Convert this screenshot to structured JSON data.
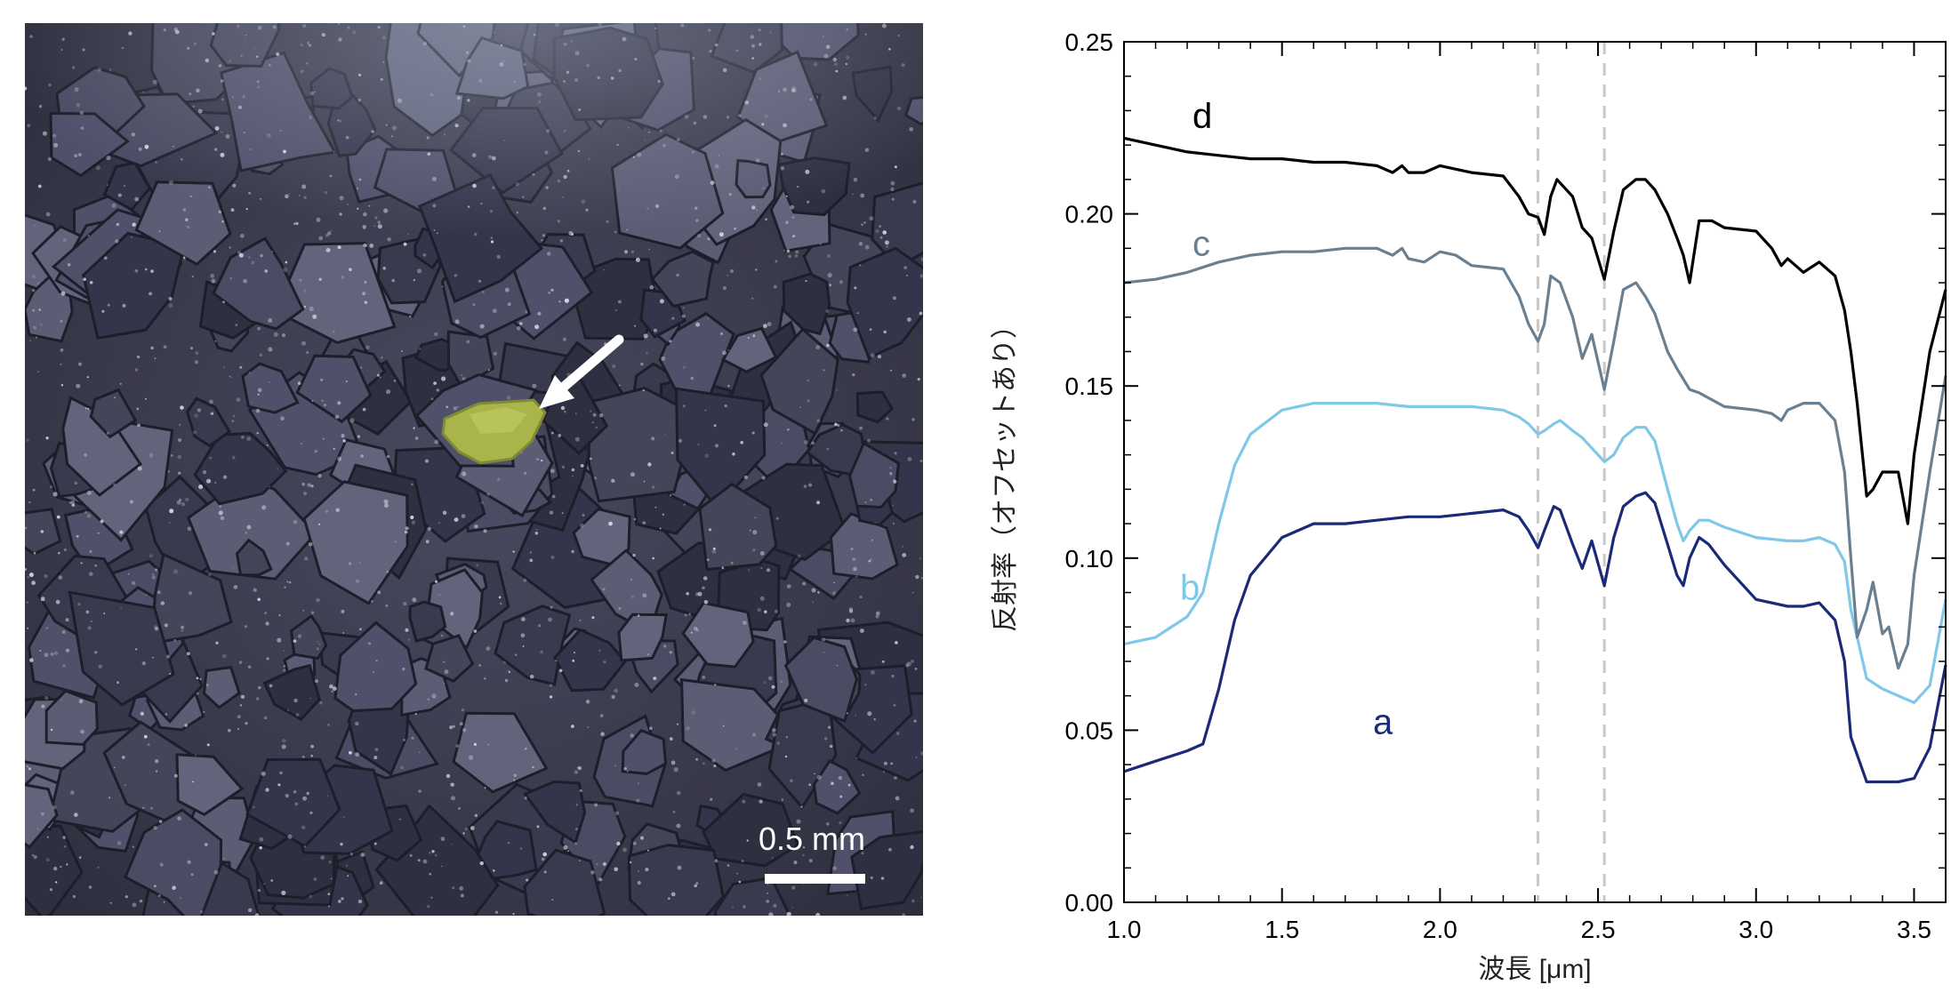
{
  "photo": {
    "scale_bar_label": "0.5 mm",
    "pointer": "arrow-icon"
  },
  "chart_data": {
    "type": "line",
    "xlabel": "波長 [μm]",
    "ylabel": "反射率（オフセットあり）",
    "xlim": [
      1.0,
      3.6
    ],
    "ylim": [
      0.0,
      0.25
    ],
    "x_ticks": [
      "1.0",
      "1.5",
      "2.0",
      "2.5",
      "3.0",
      "3.5"
    ],
    "y_ticks": [
      "0.00",
      "0.05",
      "0.10",
      "0.15",
      "0.20",
      "0.25"
    ],
    "reference_lines_x": [
      2.31,
      2.52
    ],
    "series": [
      {
        "name": "a",
        "color": "#1a2a78",
        "x": [
          1.0,
          1.1,
          1.2,
          1.25,
          1.3,
          1.35,
          1.4,
          1.5,
          1.6,
          1.7,
          1.8,
          1.9,
          2.0,
          2.1,
          2.2,
          2.25,
          2.28,
          2.31,
          2.33,
          2.36,
          2.38,
          2.42,
          2.45,
          2.48,
          2.52,
          2.55,
          2.58,
          2.62,
          2.65,
          2.68,
          2.72,
          2.75,
          2.77,
          2.79,
          2.82,
          2.85,
          2.9,
          3.0,
          3.1,
          3.15,
          3.2,
          3.25,
          3.28,
          3.3,
          3.35,
          3.4,
          3.45,
          3.5,
          3.55,
          3.6
        ],
        "y": [
          0.038,
          0.041,
          0.044,
          0.046,
          0.062,
          0.082,
          0.095,
          0.106,
          0.11,
          0.11,
          0.111,
          0.112,
          0.112,
          0.113,
          0.114,
          0.112,
          0.108,
          0.103,
          0.108,
          0.115,
          0.114,
          0.104,
          0.097,
          0.105,
          0.092,
          0.106,
          0.115,
          0.118,
          0.119,
          0.116,
          0.104,
          0.095,
          0.092,
          0.1,
          0.106,
          0.104,
          0.098,
          0.088,
          0.086,
          0.086,
          0.087,
          0.082,
          0.07,
          0.048,
          0.035,
          0.035,
          0.035,
          0.036,
          0.045,
          0.069
        ]
      },
      {
        "name": "b",
        "color": "#7fc8e8",
        "x": [
          1.0,
          1.1,
          1.2,
          1.25,
          1.3,
          1.35,
          1.4,
          1.5,
          1.6,
          1.7,
          1.8,
          1.9,
          2.0,
          2.1,
          2.2,
          2.25,
          2.28,
          2.31,
          2.33,
          2.36,
          2.38,
          2.42,
          2.45,
          2.48,
          2.52,
          2.55,
          2.58,
          2.62,
          2.65,
          2.68,
          2.72,
          2.75,
          2.77,
          2.79,
          2.82,
          2.85,
          2.9,
          3.0,
          3.1,
          3.15,
          3.2,
          3.25,
          3.28,
          3.3,
          3.35,
          3.4,
          3.45,
          3.5,
          3.55,
          3.6
        ],
        "y": [
          0.075,
          0.077,
          0.083,
          0.09,
          0.11,
          0.127,
          0.136,
          0.143,
          0.145,
          0.145,
          0.145,
          0.144,
          0.144,
          0.144,
          0.143,
          0.141,
          0.139,
          0.136,
          0.137,
          0.139,
          0.14,
          0.137,
          0.135,
          0.132,
          0.128,
          0.13,
          0.135,
          0.138,
          0.138,
          0.134,
          0.12,
          0.11,
          0.105,
          0.108,
          0.111,
          0.111,
          0.109,
          0.106,
          0.105,
          0.105,
          0.106,
          0.104,
          0.099,
          0.085,
          0.065,
          0.062,
          0.06,
          0.058,
          0.063,
          0.088
        ]
      },
      {
        "name": "c",
        "color": "#6a7f90",
        "x": [
          1.0,
          1.1,
          1.2,
          1.3,
          1.4,
          1.5,
          1.6,
          1.7,
          1.8,
          1.85,
          1.88,
          1.9,
          1.95,
          2.0,
          2.05,
          2.1,
          2.2,
          2.25,
          2.28,
          2.31,
          2.33,
          2.35,
          2.38,
          2.42,
          2.45,
          2.48,
          2.52,
          2.55,
          2.58,
          2.62,
          2.65,
          2.68,
          2.72,
          2.75,
          2.77,
          2.79,
          2.82,
          2.9,
          3.0,
          3.05,
          3.08,
          3.1,
          3.15,
          3.2,
          3.25,
          3.28,
          3.3,
          3.32,
          3.35,
          3.37,
          3.4,
          3.42,
          3.45,
          3.48,
          3.5,
          3.55,
          3.6
        ],
        "y": [
          0.18,
          0.181,
          0.183,
          0.186,
          0.188,
          0.189,
          0.189,
          0.19,
          0.19,
          0.188,
          0.19,
          0.187,
          0.186,
          0.189,
          0.188,
          0.185,
          0.184,
          0.176,
          0.168,
          0.163,
          0.168,
          0.182,
          0.18,
          0.17,
          0.158,
          0.165,
          0.149,
          0.163,
          0.178,
          0.18,
          0.176,
          0.171,
          0.16,
          0.155,
          0.152,
          0.149,
          0.148,
          0.144,
          0.143,
          0.142,
          0.14,
          0.143,
          0.145,
          0.145,
          0.14,
          0.125,
          0.1,
          0.077,
          0.085,
          0.093,
          0.078,
          0.08,
          0.068,
          0.075,
          0.095,
          0.125,
          0.153
        ]
      },
      {
        "name": "d",
        "color": "#000000",
        "x": [
          1.0,
          1.1,
          1.2,
          1.3,
          1.4,
          1.5,
          1.6,
          1.7,
          1.8,
          1.85,
          1.88,
          1.9,
          1.95,
          2.0,
          2.05,
          2.1,
          2.2,
          2.25,
          2.28,
          2.31,
          2.33,
          2.35,
          2.37,
          2.42,
          2.45,
          2.48,
          2.52,
          2.55,
          2.58,
          2.62,
          2.65,
          2.68,
          2.72,
          2.75,
          2.77,
          2.79,
          2.82,
          2.86,
          2.9,
          3.0,
          3.05,
          3.08,
          3.1,
          3.15,
          3.2,
          3.25,
          3.28,
          3.3,
          3.32,
          3.35,
          3.37,
          3.4,
          3.45,
          3.48,
          3.5,
          3.55,
          3.6
        ],
        "y": [
          0.222,
          0.22,
          0.218,
          0.217,
          0.216,
          0.216,
          0.215,
          0.215,
          0.214,
          0.212,
          0.214,
          0.212,
          0.212,
          0.214,
          0.213,
          0.212,
          0.211,
          0.205,
          0.2,
          0.199,
          0.194,
          0.205,
          0.21,
          0.205,
          0.196,
          0.193,
          0.181,
          0.195,
          0.207,
          0.21,
          0.21,
          0.207,
          0.2,
          0.193,
          0.188,
          0.18,
          0.198,
          0.198,
          0.196,
          0.195,
          0.19,
          0.185,
          0.187,
          0.183,
          0.186,
          0.182,
          0.172,
          0.16,
          0.145,
          0.118,
          0.12,
          0.125,
          0.125,
          0.11,
          0.13,
          0.16,
          0.178
        ]
      }
    ]
  }
}
